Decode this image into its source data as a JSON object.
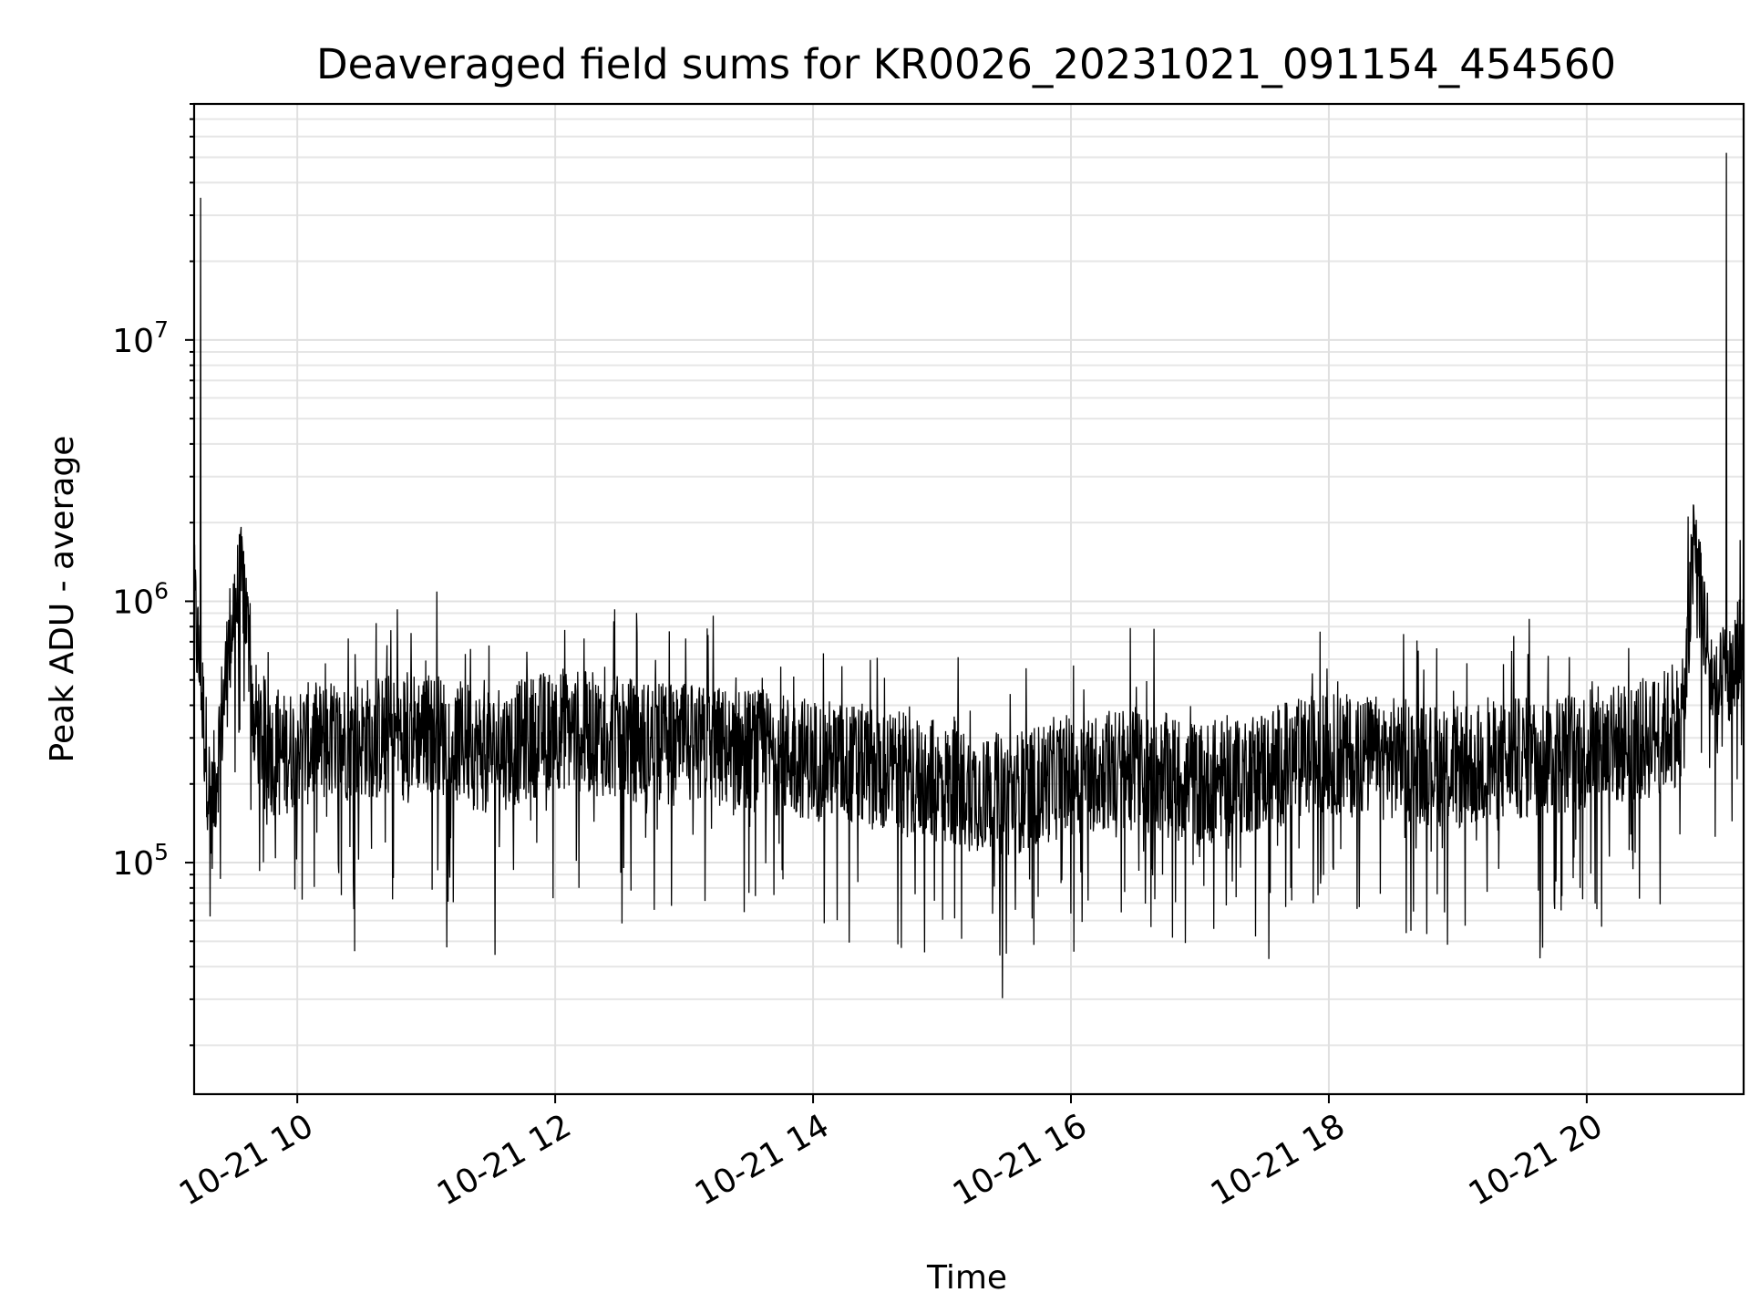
{
  "chart_data": {
    "type": "line",
    "title": "Deaveraged field sums for KR0026_20231021_091154_454560",
    "xlabel": "Time",
    "ylabel": "Peak ADU - average",
    "y_scale": "log",
    "ylim": [
      13000,
      80000000
    ],
    "xlim": [
      "10-21 09:12",
      "10-21 21:13"
    ],
    "x_ticks": [
      "10-21 10",
      "10-21 12",
      "10-21 14",
      "10-21 16",
      "10-21 18",
      "10-21 20"
    ],
    "y_ticks": [
      {
        "base": "10",
        "exp": "5",
        "value": 100000
      },
      {
        "base": "10",
        "exp": "6",
        "value": 1000000
      },
      {
        "base": "10",
        "exp": "7",
        "value": 10000000
      }
    ],
    "grid": true,
    "legend": "none",
    "line_color": "#000000",
    "series": [
      {
        "x": [
          "10-21 09:12",
          "10-21 09:15",
          "10-21 09:20",
          "10-21 09:30",
          "10-21 09:35",
          "10-21 09:40",
          "10-21 09:50",
          "10-21 10:00",
          "10-21 10:30",
          "10-21 11:00",
          "10-21 11:30",
          "10-21 12:00",
          "10-21 12:30",
          "10-21 13:00",
          "10-21 13:30",
          "10-21 14:00",
          "10-21 14:30",
          "10-21 15:00",
          "10-21 15:30",
          "10-21 16:00",
          "10-21 16:30",
          "10-21 17:00",
          "10-21 17:30",
          "10-21 18:00",
          "10-21 18:30",
          "10-21 19:00",
          "10-21 19:30",
          "10-21 20:00",
          "10-21 20:30",
          "10-21 20:45",
          "10-21 20:50",
          "10-21 21:00",
          "10-21 21:05",
          "10-21 21:13"
        ],
        "values": [
          1000000,
          35000000,
          150000,
          900000,
          1200000,
          350000,
          250000,
          280000,
          300000,
          320000,
          260000,
          330000,
          300000,
          280000,
          270000,
          250000,
          230000,
          200000,
          180000,
          220000,
          230000,
          200000,
          230000,
          260000,
          250000,
          230000,
          250000,
          270000,
          300000,
          350000,
          1700000,
          400000,
          52000000,
          700000
        ]
      }
    ]
  }
}
